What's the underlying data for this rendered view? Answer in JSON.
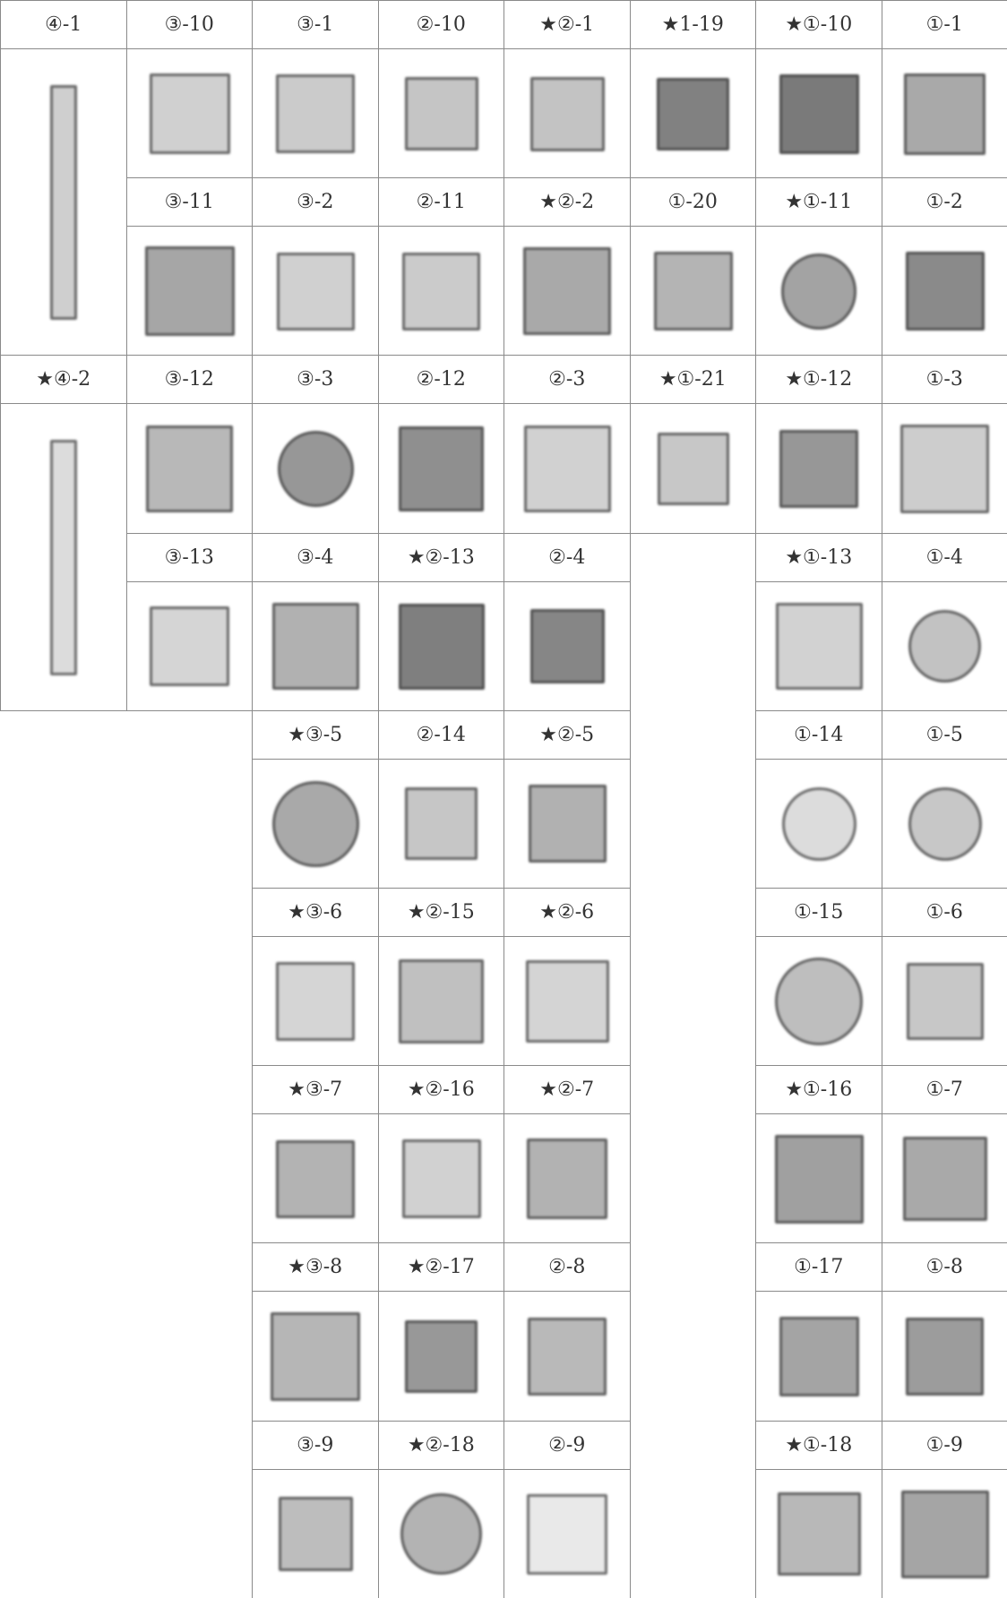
{
  "rows": [
    [
      "④-1",
      "③-10",
      "③-1",
      "②-10",
      "★②-1",
      "★1-19",
      "★①-10",
      "①-1"
    ],
    [
      "③-11",
      "③-2",
      "②-11",
      "★②-2",
      "①-20",
      "★①-11",
      "①-2"
    ],
    [
      "★④-2",
      "③-12",
      "③-3",
      "②-12",
      "②-3",
      "★①-21",
      "★①-12",
      "①-3"
    ],
    [
      "③-13",
      "③-4",
      "★②-13",
      "②-4",
      "★①-13",
      "①-4"
    ],
    [
      "★③-5",
      "②-14",
      "★②-5",
      "①-14",
      "①-5"
    ],
    [
      "★③-6",
      "★②-15",
      "★②-6",
      "①-15",
      "①-6"
    ],
    [
      "★③-7",
      "★②-16",
      "★②-7",
      "★①-16",
      "①-7"
    ],
    [
      "★③-8",
      "★②-17",
      "②-8",
      "①-17",
      "①-8"
    ],
    [
      "③-9",
      "★②-18",
      "②-9",
      "★①-18",
      "①-9"
    ]
  ]
}
